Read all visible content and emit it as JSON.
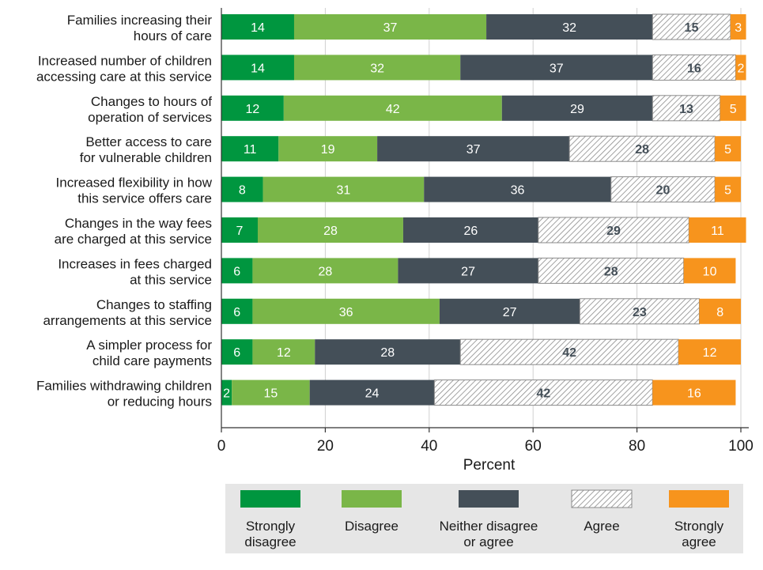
{
  "chart_data": {
    "type": "bar",
    "orientation": "horizontal",
    "stacked": true,
    "xlabel": "Percent",
    "xlim": [
      0,
      100
    ],
    "xticks": [
      "0",
      "20",
      "40",
      "60",
      "80",
      "100"
    ],
    "grid": true,
    "legend_position": "bottom",
    "categories": [
      [
        "Families increasing their",
        "hours of care"
      ],
      [
        "Increased number of children",
        "accessing care at this service"
      ],
      [
        "Changes to hours of",
        "operation of services"
      ],
      [
        "Better access to care",
        "for vulnerable children"
      ],
      [
        "Increased flexibility in how",
        "this service offers care"
      ],
      [
        "Changes in the way fees",
        "are charged at this service"
      ],
      [
        "Increases in fees charged",
        "at this service"
      ],
      [
        "Changes to staffing",
        "arrangements at this service"
      ],
      [
        "A simpler process for",
        "child care payments"
      ],
      [
        "Families withdrawing children",
        "or reducing hours"
      ]
    ],
    "series": [
      {
        "name": [
          "Strongly",
          "disagree"
        ],
        "color": "#00963f",
        "pattern": "solid",
        "values": [
          14,
          14,
          12,
          11,
          8,
          7,
          6,
          6,
          6,
          2
        ]
      },
      {
        "name": [
          "Disagree"
        ],
        "color": "#7ab648",
        "pattern": "solid",
        "values": [
          37,
          32,
          42,
          19,
          31,
          28,
          28,
          36,
          12,
          15
        ]
      },
      {
        "name": [
          "Neither disagree",
          "or agree"
        ],
        "color": "#444f58",
        "pattern": "solid",
        "values": [
          32,
          37,
          29,
          37,
          36,
          26,
          27,
          27,
          28,
          24
        ]
      },
      {
        "name": [
          "Agree"
        ],
        "color": "#ffffff",
        "pattern": "hatch",
        "values": [
          15,
          16,
          13,
          28,
          20,
          29,
          28,
          23,
          42,
          42
        ]
      },
      {
        "name": [
          "Strongly",
          "agree"
        ],
        "color": "#f7941d",
        "pattern": "solid",
        "values": [
          3,
          2,
          5,
          5,
          5,
          11,
          10,
          8,
          12,
          16
        ]
      }
    ],
    "colors": {
      "grid": "#d0d0d0",
      "axis": "#333333",
      "legend_bg": "#e6e6e6",
      "hatch_stroke": "#8a8a8a",
      "label_light": "#ffffff",
      "label_dark": "#444f58"
    }
  }
}
